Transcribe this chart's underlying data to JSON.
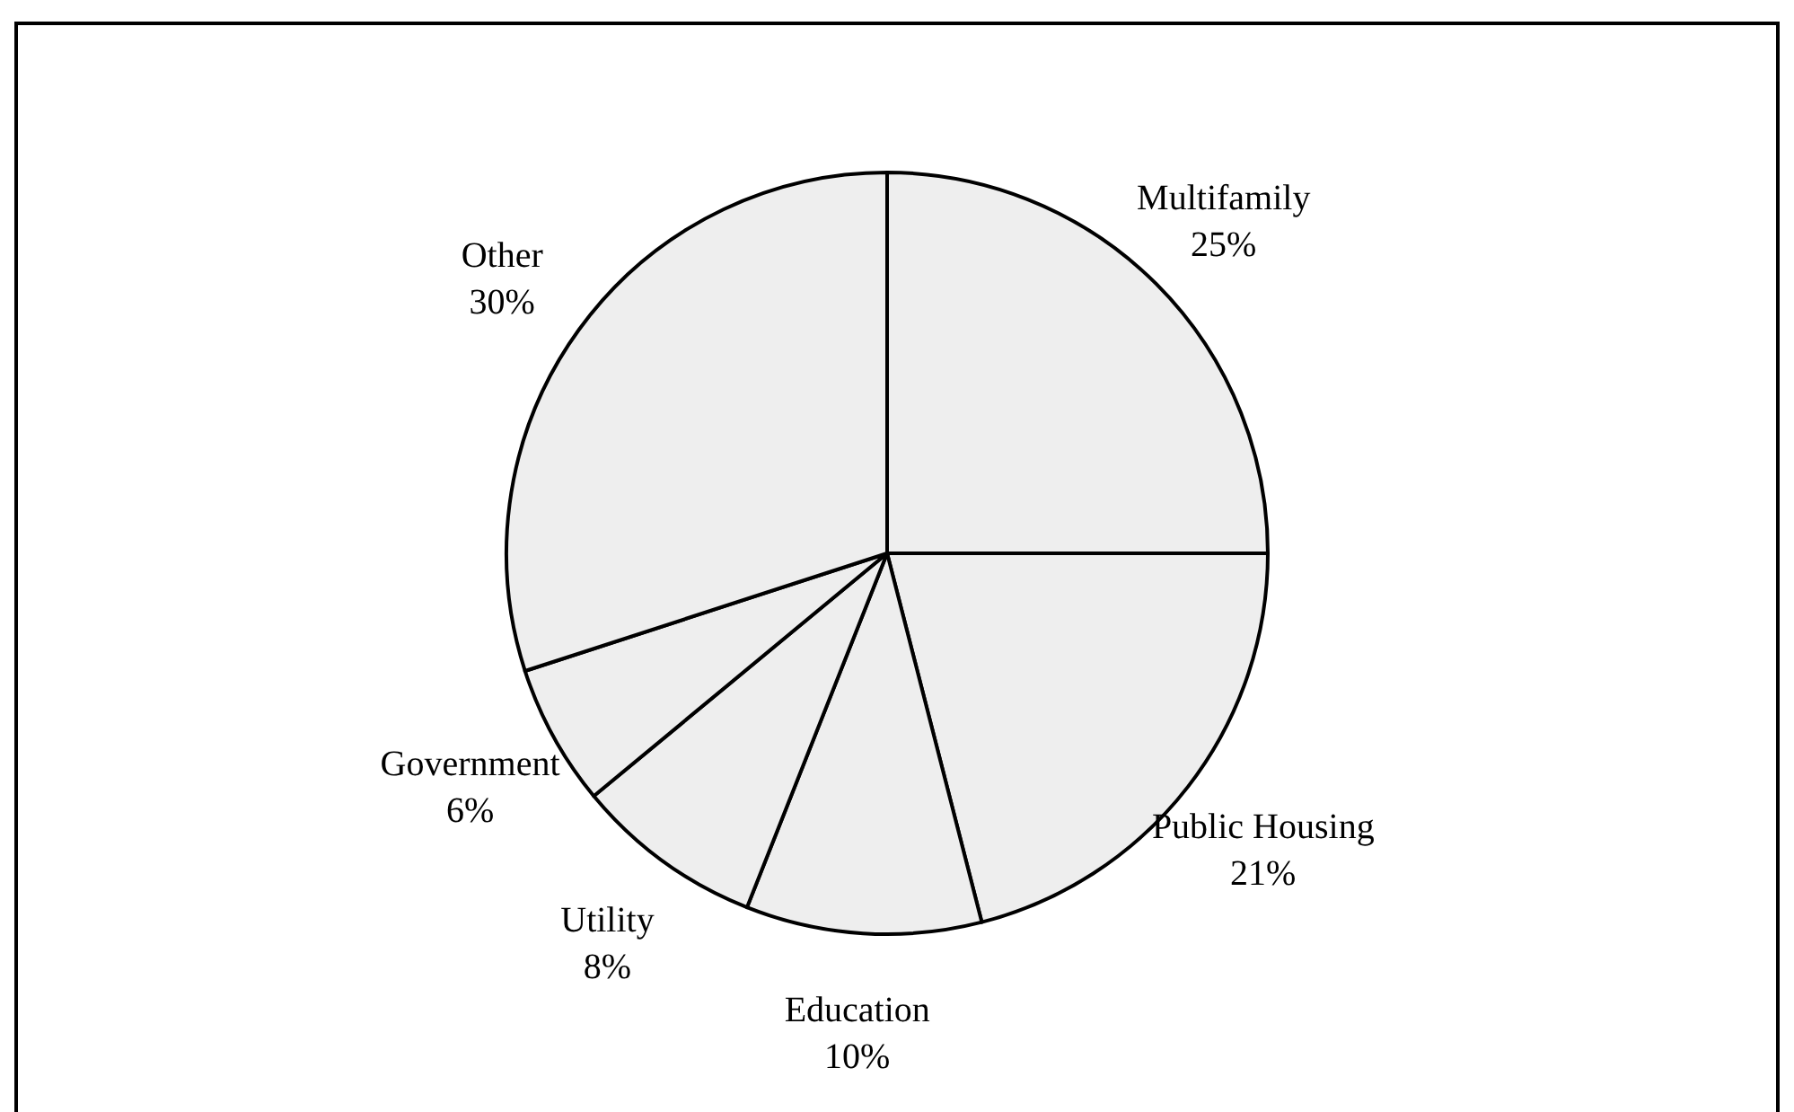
{
  "chart_data": {
    "type": "pie",
    "categories": [
      "Multifamily",
      "Public Housing",
      "Education",
      "Utility",
      "Government",
      "Other"
    ],
    "values": [
      25,
      21,
      10,
      8,
      6,
      30
    ],
    "colors": [
      "#eeeeee",
      "#eeeeee",
      "#eeeeee",
      "#eeeeee",
      "#eeeeee",
      "#eeeeee"
    ],
    "value_labels": [
      "25%",
      "21%",
      "10%",
      "8%",
      "6%",
      "30%"
    ]
  }
}
